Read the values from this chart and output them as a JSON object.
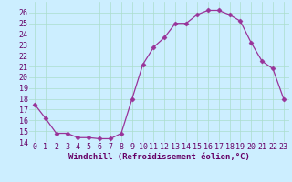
{
  "x": [
    0,
    1,
    2,
    3,
    4,
    5,
    6,
    7,
    8,
    9,
    10,
    11,
    12,
    13,
    14,
    15,
    16,
    17,
    18,
    19,
    20,
    21,
    22,
    23
  ],
  "y": [
    17.5,
    16.2,
    14.8,
    14.8,
    14.4,
    14.4,
    14.3,
    14.3,
    14.8,
    18.0,
    21.2,
    22.8,
    23.7,
    25.0,
    25.0,
    25.8,
    26.2,
    26.2,
    25.8,
    25.2,
    23.2,
    21.5,
    20.8,
    18.0
  ],
  "line_color": "#993399",
  "marker": "D",
  "markersize": 2.5,
  "linewidth": 0.9,
  "bg_color": "#cceeff",
  "grid_color": "#aaddcc",
  "xlabel": "Windchill (Refroidissement éolien,°C)",
  "xlabel_fontsize": 6.5,
  "tick_fontsize": 6.0,
  "ylim": [
    14,
    27
  ],
  "yticks": [
    14,
    15,
    16,
    17,
    18,
    19,
    20,
    21,
    22,
    23,
    24,
    25,
    26
  ],
  "xtick_labels": [
    "0",
    "1",
    "2",
    "3",
    "4",
    "5",
    "6",
    "7",
    "8",
    "9",
    "10",
    "11",
    "12",
    "13",
    "14",
    "15",
    "16",
    "17",
    "18",
    "19",
    "20",
    "21",
    "22",
    "23"
  ],
  "xticks": [
    0,
    1,
    2,
    3,
    4,
    5,
    6,
    7,
    8,
    9,
    10,
    11,
    12,
    13,
    14,
    15,
    16,
    17,
    18,
    19,
    20,
    21,
    22,
    23
  ]
}
